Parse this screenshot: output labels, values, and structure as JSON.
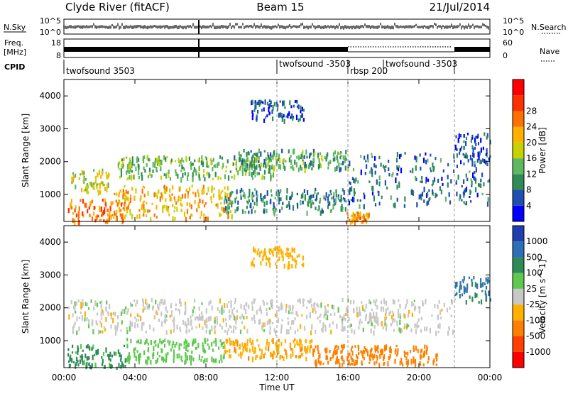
{
  "header": {
    "station": "Clyde River (fitACF)",
    "beam": "Beam 15",
    "date": "21/Jul/2014"
  },
  "status_panels": {
    "nsky_label": "N.Sky",
    "nsearch_label": "N.Search",
    "freq_label_top": "Freq.",
    "freq_label_unit": "[MHz]",
    "nave_label": "Nave",
    "cpid_label": "CPID",
    "noise_ticks_left": [
      "10^5",
      "10^0"
    ],
    "noise_ticks_right": [
      "10^5",
      "10^0"
    ],
    "freq_ticks": [
      "18",
      "8"
    ],
    "nave_ticks": [
      "60",
      "0"
    ]
  },
  "cpid_segments": [
    {
      "label": "twofsound 3503",
      "start_hour": 0
    },
    {
      "label": "twofsound -3503",
      "start_hour": 12
    },
    {
      "label": "rbsp 200",
      "start_hour": 16
    },
    {
      "label": "twofsound -3503",
      "start_hour": 18
    },
    {
      "label": "",
      "start_hour": 22
    }
  ],
  "chart_data": [
    {
      "type": "heatmap",
      "title": "",
      "xlabel": "",
      "ylabel": "Slant Range [km]",
      "xlim": [
        0,
        24
      ],
      "ylim": [
        180,
        4500
      ],
      "y_ticks": [
        1000,
        2000,
        3000,
        4000
      ],
      "colorbar": {
        "label": "Power [dB]",
        "ticks": [
          "4",
          "8",
          "12",
          "16",
          "20",
          "24",
          "28"
        ],
        "colors": [
          "#0000ff",
          "#1f4fb0",
          "#2e8b57",
          "#5fb85f",
          "#c8d200",
          "#ffb000",
          "#ff7000",
          "#ff3000",
          "#ff0000"
        ]
      },
      "regions": [
        {
          "t": [
            0.2,
            3.5
          ],
          "r": [
            200,
            900
          ],
          "value": 26
        },
        {
          "t": [
            0.2,
            2.5
          ],
          "r": [
            1100,
            1800
          ],
          "value": 18
        },
        {
          "t": [
            2.5,
            9.5
          ],
          "r": [
            300,
            1300
          ],
          "value": 22
        },
        {
          "t": [
            3.0,
            12.0
          ],
          "r": [
            1500,
            2200
          ],
          "value": 14
        },
        {
          "t": [
            9.5,
            16.0
          ],
          "r": [
            1800,
            2400
          ],
          "value": 12
        },
        {
          "t": [
            9.0,
            16.0
          ],
          "r": [
            500,
            1200
          ],
          "value": 10
        },
        {
          "t": [
            15.8,
            17.2
          ],
          "r": [
            200,
            500
          ],
          "value": 24
        },
        {
          "t": [
            16.0,
            24.0
          ],
          "r": [
            700,
            2300
          ],
          "value": 8
        },
        {
          "t": [
            10.5,
            13.5
          ],
          "r": [
            3300,
            3900
          ],
          "value": 6
        },
        {
          "t": [
            22.0,
            24.0
          ],
          "r": [
            2000,
            2900
          ],
          "value": 6
        }
      ]
    },
    {
      "type": "heatmap",
      "title": "",
      "xlabel": "Time UT",
      "ylabel": "Slant Range [km]",
      "xlim": [
        0,
        24
      ],
      "ylim": [
        180,
        4500
      ],
      "x_tick_labels": [
        "00:00",
        "04:00",
        "08:00",
        "12:00",
        "16:00",
        "20:00",
        "00:00"
      ],
      "y_ticks": [
        1000,
        2000,
        3000,
        4000
      ],
      "colorbar": {
        "label": "Velocity [m s^-1]",
        "ticks": [
          "1000",
          "500",
          "100",
          "25",
          "-25",
          "-100",
          "-500",
          "-1000"
        ],
        "colors": [
          "#1f3fb0",
          "#2e6fb8",
          "#2e8b57",
          "#5fc84f",
          "#c8c8c8",
          "#ffb000",
          "#ff8000",
          "#ff4000",
          "#ff0000"
        ]
      },
      "regions": [
        {
          "t": [
            0.2,
            3.5
          ],
          "r": [
            200,
            900
          ],
          "value": 150
        },
        {
          "t": [
            0.2,
            16.0
          ],
          "r": [
            1300,
            2300
          ],
          "value": 0
        },
        {
          "t": [
            3.5,
            9.0
          ],
          "r": [
            400,
            1100
          ],
          "value": 60
        },
        {
          "t": [
            9.0,
            14.0
          ],
          "r": [
            500,
            1100
          ],
          "value": -80
        },
        {
          "t": [
            14.0,
            21.0
          ],
          "r": [
            300,
            900
          ],
          "value": -200
        },
        {
          "t": [
            16.0,
            22.0
          ],
          "r": [
            1300,
            2300
          ],
          "value": 0
        },
        {
          "t": [
            22.0,
            24.0
          ],
          "r": [
            2200,
            3000
          ],
          "value": 600
        },
        {
          "t": [
            10.5,
            13.5
          ],
          "r": [
            3300,
            3900
          ],
          "value": -60
        }
      ]
    }
  ]
}
